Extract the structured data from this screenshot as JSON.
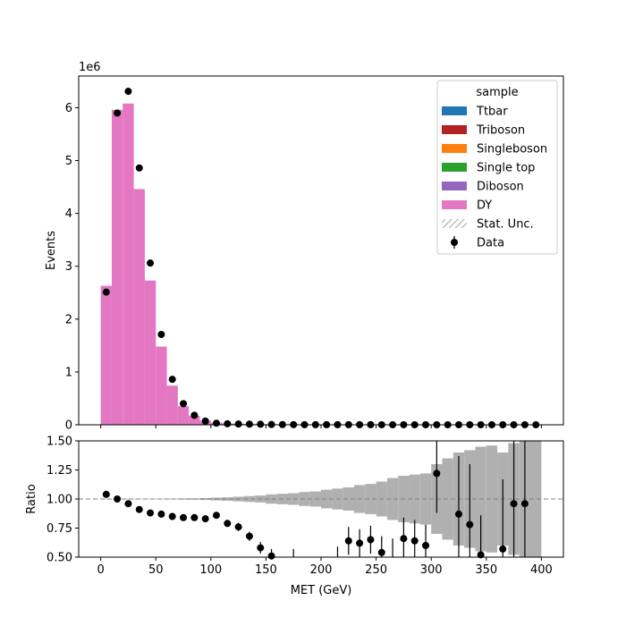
{
  "chart_data": [
    {
      "type": "bar",
      "subtype": "stacked-histogram-with-data-points",
      "ylabel": "Events",
      "y_offset_text": "1e6",
      "xlim": [
        -20,
        420
      ],
      "ylim": [
        0,
        6.6
      ],
      "yticks": [
        "0",
        "1",
        "2",
        "3",
        "4",
        "5",
        "6"
      ],
      "bin_edges": [
        0,
        10,
        20,
        30,
        40,
        50,
        60,
        70,
        80,
        90,
        100,
        110,
        120,
        130,
        140,
        150,
        160,
        170,
        180,
        190,
        200,
        210,
        220,
        230,
        240,
        250,
        260,
        270,
        280,
        290,
        300,
        310,
        320,
        330,
        340,
        350,
        360,
        370,
        380,
        390,
        400
      ],
      "legend": {
        "title": "sample",
        "placement": "top-right",
        "entries": [
          {
            "label": "Ttbar",
            "kind": "patch",
            "color": "#1f77b4"
          },
          {
            "label": "Triboson",
            "kind": "patch",
            "color": "#b22222"
          },
          {
            "label": "Singleboson",
            "kind": "patch",
            "color": "#ff7f0e"
          },
          {
            "label": "Single top",
            "kind": "patch",
            "color": "#2ca02c"
          },
          {
            "label": "Diboson",
            "kind": "patch",
            "color": "#9467bd"
          },
          {
            "label": "DY",
            "kind": "patch",
            "color": "#e377c2"
          },
          {
            "label": "Stat. Unc.",
            "kind": "hatch",
            "color": "#888888"
          },
          {
            "label": "Data",
            "kind": "errorbar",
            "color": "#000000"
          }
        ]
      },
      "series": [
        {
          "name": "DY",
          "color": "#e377c2",
          "values": [
            2.63,
            5.96,
            6.08,
            4.46,
            2.73,
            1.48,
            0.74,
            0.35,
            0.17,
            0.08,
            0.04,
            0.025,
            0.02,
            0.015,
            0.012,
            0.01,
            0.008,
            0.007,
            0.006,
            0.005,
            0.004,
            0.004,
            0.003,
            0.003,
            0.003,
            0.002,
            0.002,
            0.002,
            0.002,
            0.002,
            0.001,
            0.001,
            0.001,
            0.001,
            0.001,
            0.001,
            0.001,
            0.001,
            0.001,
            0.001
          ]
        }
      ],
      "data_points": {
        "name": "Data",
        "x": [
          5,
          15,
          25,
          35,
          45,
          55,
          65,
          75,
          85,
          95,
          105,
          115,
          125,
          135,
          145,
          155,
          165,
          175,
          185,
          195,
          205,
          215,
          225,
          235,
          245,
          255,
          265,
          275,
          285,
          295,
          305,
          315,
          325,
          335,
          345,
          355,
          365,
          375,
          385,
          395
        ],
        "y": [
          2.51,
          5.9,
          6.31,
          4.86,
          3.06,
          1.71,
          0.86,
          0.4,
          0.18,
          0.07,
          0.03,
          0.02,
          0.015,
          0.012,
          0.01,
          0.006,
          0.004,
          0.003,
          0.002,
          0.002,
          0.002,
          0.002,
          0.002,
          0.002,
          0.002,
          0.001,
          0.001,
          0.001,
          0.001,
          0.001,
          0.001,
          0.001,
          0.001,
          0.001,
          0.001,
          0.001,
          0.001,
          0.001,
          0.001,
          0.001
        ]
      }
    },
    {
      "type": "scatter",
      "subtype": "ratio-panel",
      "xlabel": "MET (GeV)",
      "ylabel": "Ratio",
      "xlim": [
        -20,
        420
      ],
      "ylim": [
        0.5,
        1.5
      ],
      "xticks": [
        "0",
        "50",
        "100",
        "150",
        "200",
        "250",
        "300",
        "350",
        "400"
      ],
      "yticks": [
        "0.50",
        "0.75",
        "1.00",
        "1.25",
        "1.50"
      ],
      "reference_line": 1.0,
      "bin_edges": [
        0,
        10,
        20,
        30,
        40,
        50,
        60,
        70,
        80,
        90,
        100,
        110,
        120,
        130,
        140,
        150,
        160,
        170,
        180,
        190,
        200,
        210,
        220,
        230,
        240,
        250,
        260,
        270,
        280,
        290,
        300,
        310,
        320,
        330,
        340,
        350,
        360,
        370,
        380,
        390,
        400
      ],
      "uncertainty_band": {
        "color": "#b0b0b0",
        "halfwidth": [
          0.002,
          0.002,
          0.002,
          0.002,
          0.002,
          0.003,
          0.004,
          0.005,
          0.006,
          0.008,
          0.012,
          0.015,
          0.02,
          0.025,
          0.03,
          0.04,
          0.045,
          0.05,
          0.06,
          0.065,
          0.08,
          0.09,
          0.1,
          0.12,
          0.13,
          0.15,
          0.18,
          0.2,
          0.21,
          0.22,
          0.3,
          0.35,
          0.4,
          0.42,
          0.45,
          0.46,
          0.4,
          0.48,
          0.6,
          0.8
        ]
      },
      "ratio_points": {
        "x": [
          5,
          15,
          25,
          35,
          45,
          55,
          65,
          75,
          85,
          95,
          105,
          115,
          125,
          135,
          145,
          155,
          175,
          215,
          225,
          235,
          245,
          255,
          265,
          275,
          285,
          295,
          305,
          325,
          335,
          345,
          365,
          375,
          385
        ],
        "y": [
          1.04,
          1.0,
          0.96,
          0.91,
          0.88,
          0.87,
          0.85,
          0.84,
          0.84,
          0.83,
          0.86,
          0.79,
          0.76,
          0.68,
          0.58,
          0.51,
          0.49,
          0.49,
          0.64,
          0.62,
          0.65,
          0.54,
          0.48,
          0.66,
          0.64,
          0.6,
          1.22,
          0.87,
          0.78,
          0.52,
          0.57,
          0.96,
          0.96
        ],
        "err": [
          0.004,
          0.003,
          0.003,
          0.003,
          0.004,
          0.005,
          0.007,
          0.01,
          0.015,
          0.02,
          0.025,
          0.03,
          0.035,
          0.04,
          0.05,
          0.06,
          0.08,
          0.1,
          0.12,
          0.12,
          0.12,
          0.14,
          0.18,
          0.18,
          0.18,
          0.18,
          0.34,
          0.5,
          0.52,
          0.34,
          0.6,
          0.6,
          0.6
        ]
      }
    }
  ]
}
